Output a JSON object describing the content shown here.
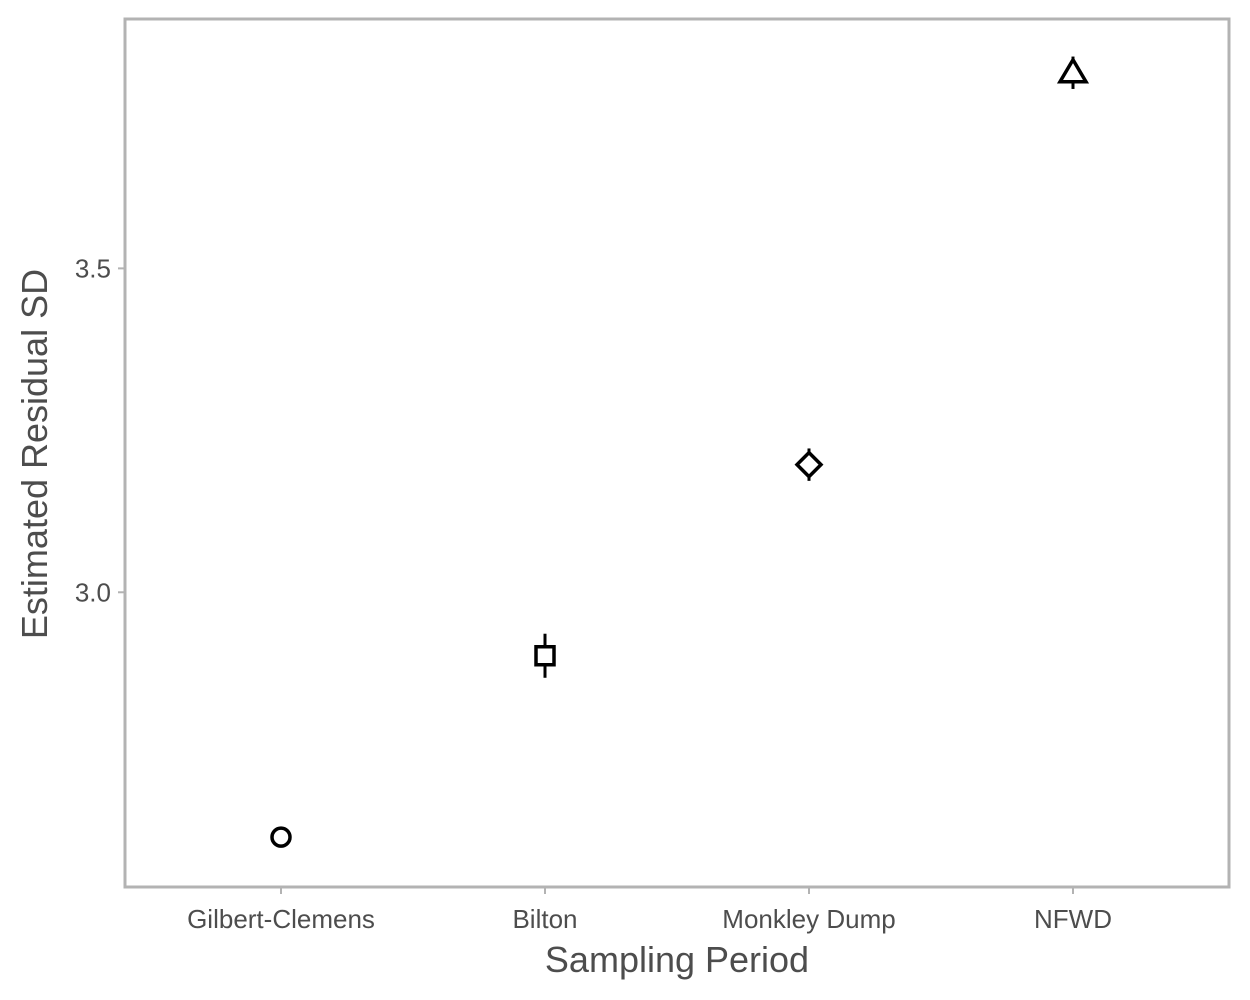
{
  "chart_data": {
    "type": "scatter",
    "xlabel": "Sampling Period",
    "ylabel": "Estimated Residual SD",
    "categories": [
      "Gilbert-Clemens",
      "Bilton",
      "Monkley Dump",
      "NFWD"
    ],
    "points": [
      {
        "category": "Gilbert-Clemens",
        "y": 2.622,
        "lower": 2.612,
        "upper": 2.632,
        "shape": "circle"
      },
      {
        "category": "Bilton",
        "y": 2.902,
        "lower": 2.868,
        "upper": 2.936,
        "shape": "square"
      },
      {
        "category": "Monkley Dump",
        "y": 3.197,
        "lower": 3.172,
        "upper": 3.222,
        "shape": "diamond"
      },
      {
        "category": "NFWD",
        "y": 3.802,
        "lower": 3.777,
        "upper": 3.827,
        "shape": "triangle"
      }
    ],
    "yticks": [
      3.0,
      3.5
    ],
    "ytick_labels": [
      "3.0",
      "3.5"
    ],
    "ylim": [
      2.545,
      3.885
    ],
    "grid": false,
    "legend": "none",
    "colors": {
      "marker": "#000000",
      "panel_border": "#b3b3b3",
      "tick": "#b3b3b3",
      "text": "#4d4d4d"
    }
  }
}
